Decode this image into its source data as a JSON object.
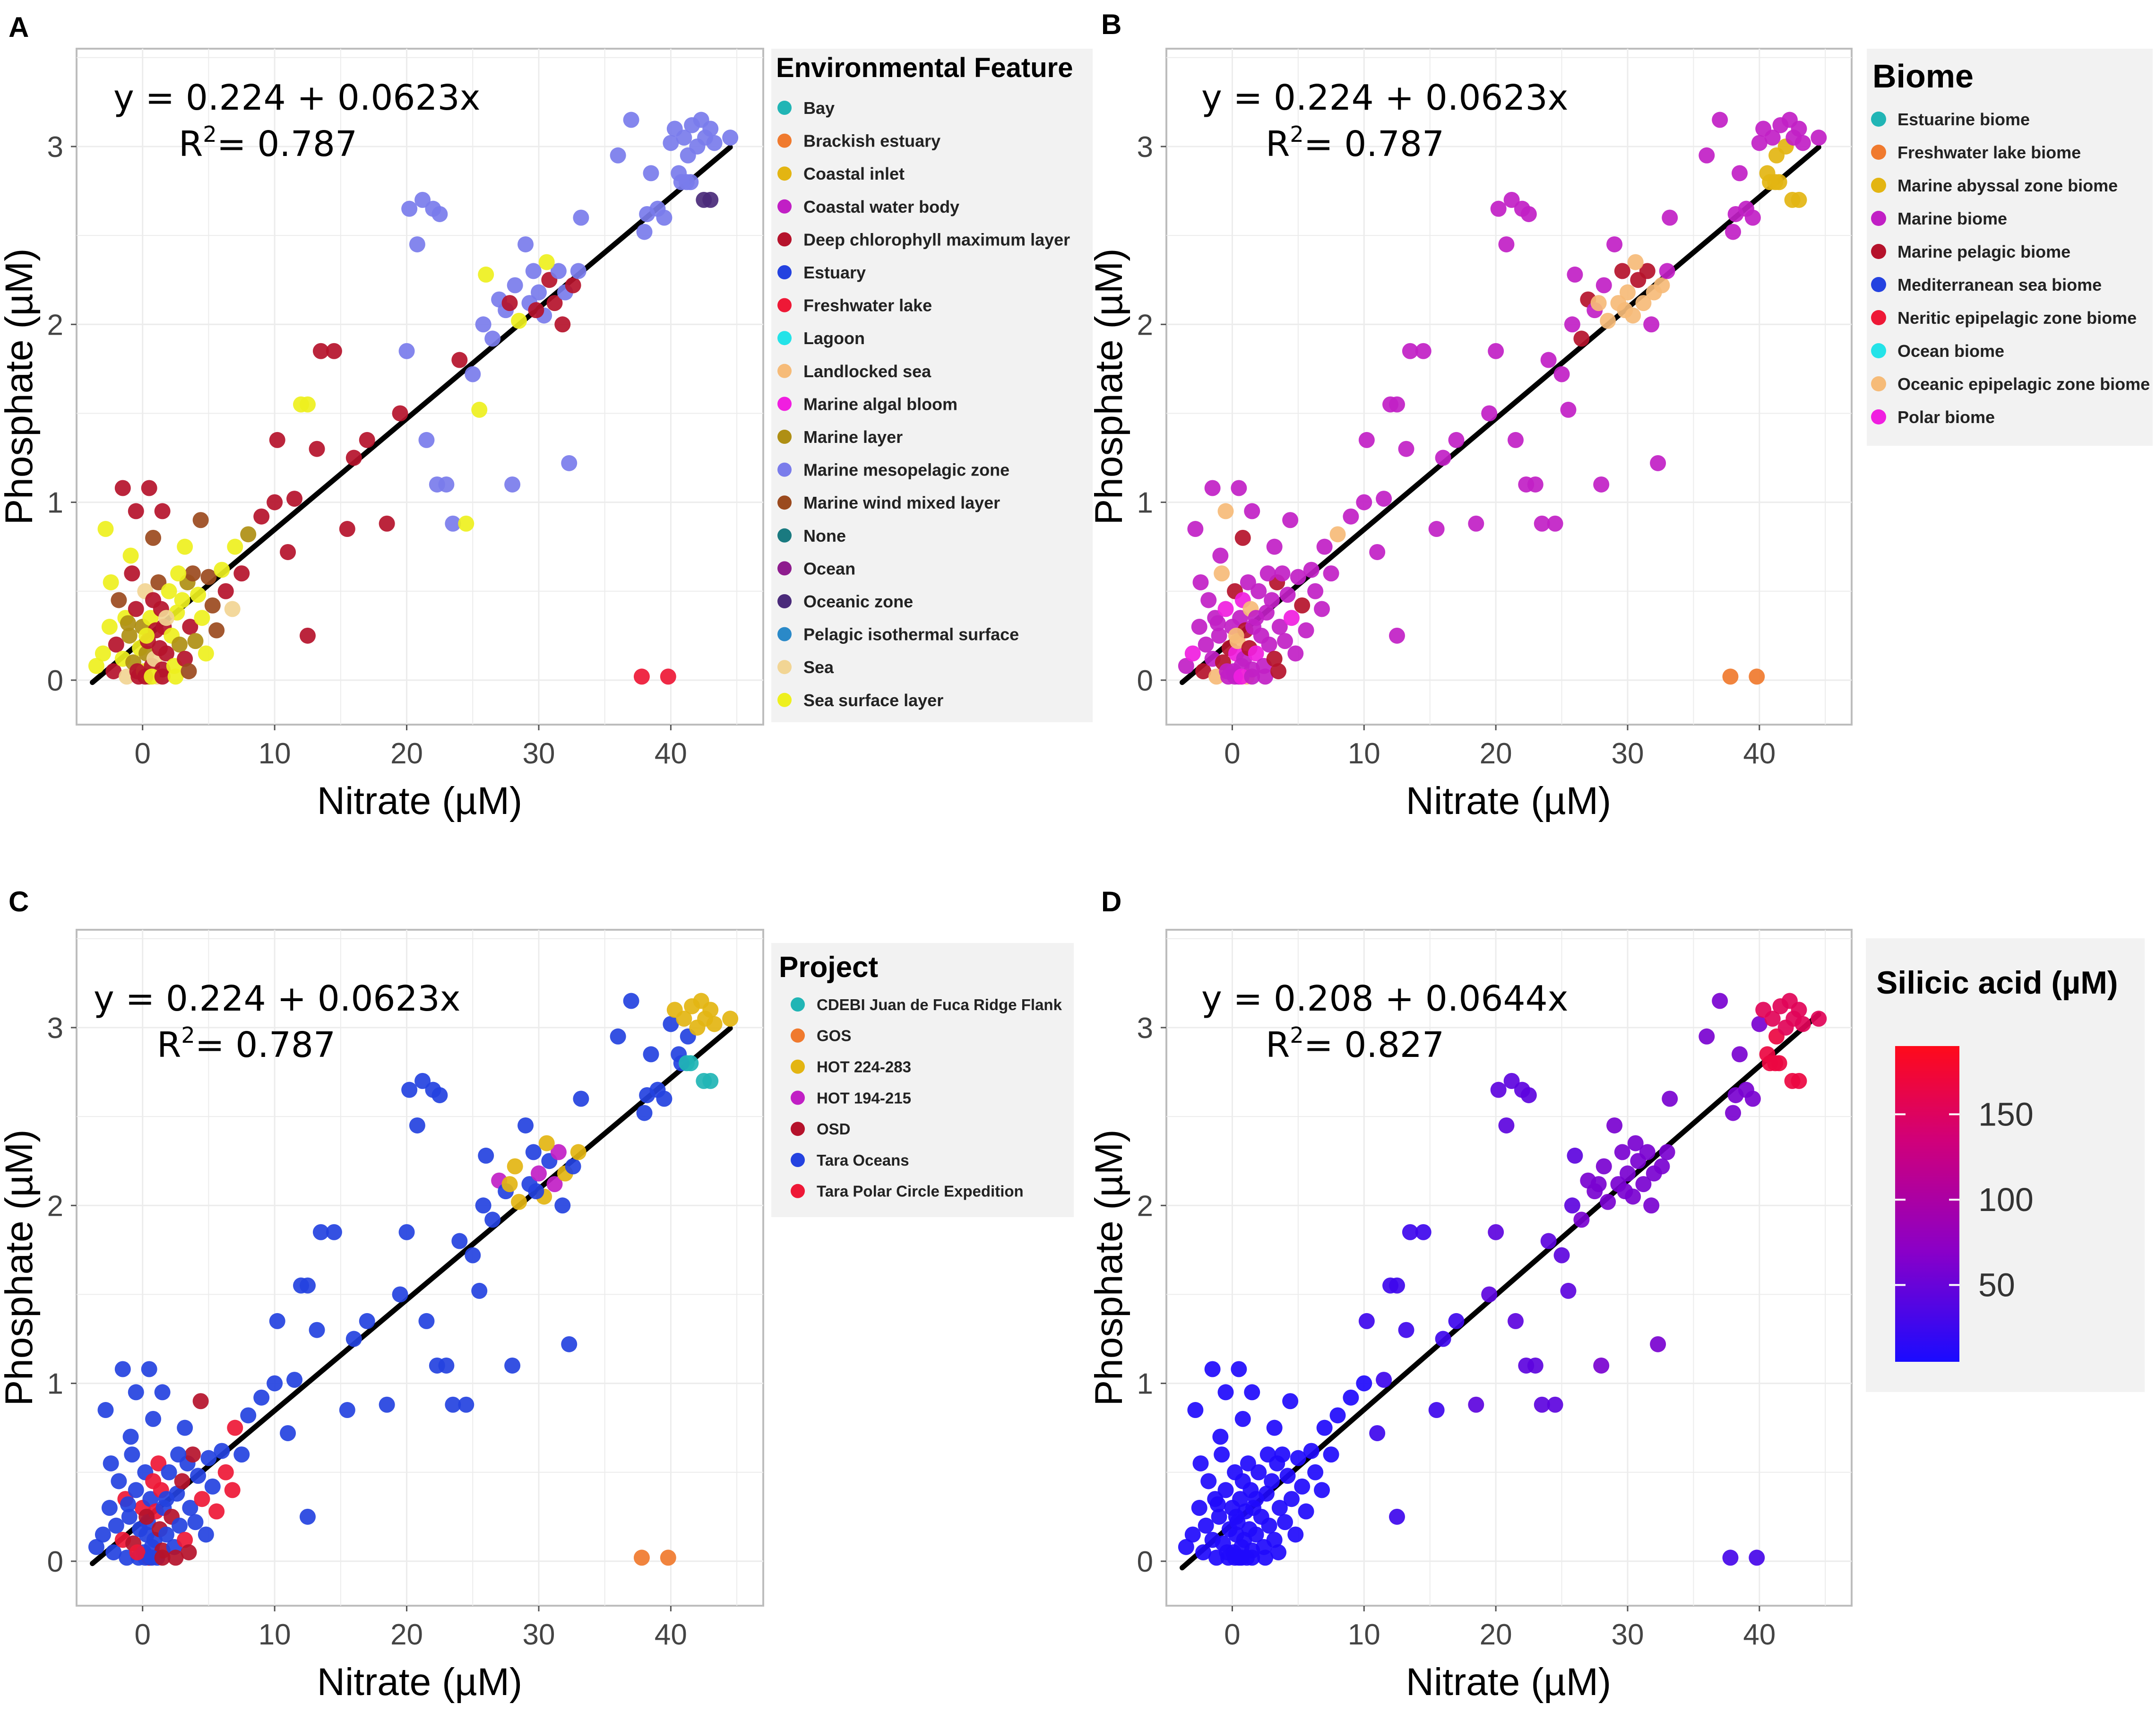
{
  "figure": {
    "x_tick_labels": [
      "0",
      "10",
      "20",
      "30",
      "40"
    ],
    "y_tick_labels": [
      "0",
      "1",
      "2",
      "3"
    ]
  },
  "chart_data": [
    {
      "panel": "A",
      "type": "scatter",
      "xlabel": "Nitrate (µM)",
      "ylabel": "Phosphate (µM)",
      "xlim": [
        -5,
        47
      ],
      "ylim": [
        -0.25,
        3.55
      ],
      "equation": "y = 0.224 + 0.0623x",
      "r2_label": "R",
      "r2_value": "= 0.787",
      "fit": {
        "intercept": 0.224,
        "slope": 0.0623,
        "x_range": [
          -3.8,
          44.5
        ]
      },
      "legend_title": "Environmental Feature",
      "legend": [
        {
          "label": "Bay",
          "color": "#21B5B5"
        },
        {
          "label": "Brackish estuary",
          "color": "#F07A2E"
        },
        {
          "label": "Coastal inlet",
          "color": "#E3B512"
        },
        {
          "label": "Coastal water body",
          "color": "#C11FC5"
        },
        {
          "label": "Deep chlorophyll maximum layer",
          "color": "#B5122B"
        },
        {
          "label": "Estuary",
          "color": "#2442E0"
        },
        {
          "label": "Freshwater lake",
          "color": "#EE1836"
        },
        {
          "label": "Lagoon",
          "color": "#24E3E8"
        },
        {
          "label": "Landlocked sea",
          "color": "#F6BB78"
        },
        {
          "label": "Marine algal bloom",
          "color": "#F01EE0"
        },
        {
          "label": "Marine layer",
          "color": "#AF8F14"
        },
        {
          "label": "Marine mesopelagic zone",
          "color": "#7A7CEB"
        },
        {
          "label": "Marine wind mixed layer",
          "color": "#9B4A1E"
        },
        {
          "label": "None",
          "color": "#1A7A80"
        },
        {
          "label": "Ocean",
          "color": "#8E1C8E"
        },
        {
          "label": "Oceanic zone",
          "color": "#4A2A7A"
        },
        {
          "label": "Pelagic isothermal surface",
          "color": "#2A89C8"
        },
        {
          "label": "Sea",
          "color": "#F2D594"
        },
        {
          "label": "Sea surface layer",
          "color": "#EEF01E"
        }
      ],
      "color_rule": "feature"
    },
    {
      "panel": "B",
      "type": "scatter",
      "xlabel": "Nitrate (µM)",
      "ylabel": "Phosphate (µM)",
      "xlim": [
        -5,
        47
      ],
      "ylim": [
        -0.25,
        3.55
      ],
      "equation": "y = 0.224 + 0.0623x",
      "r2_label": "R",
      "r2_value": "= 0.787",
      "fit": {
        "intercept": 0.224,
        "slope": 0.0623,
        "x_range": [
          -3.8,
          44.5
        ]
      },
      "legend_title": "Biome",
      "legend": [
        {
          "label": "Estuarine biome",
          "color": "#21B5B5"
        },
        {
          "label": "Freshwater lake biome",
          "color": "#F07A2E"
        },
        {
          "label": "Marine abyssal zone biome",
          "color": "#E3B512"
        },
        {
          "label": "Marine biome",
          "color": "#C11FC5"
        },
        {
          "label": "Marine pelagic biome",
          "color": "#B5122B"
        },
        {
          "label": "Mediterranean sea biome",
          "color": "#2442E0"
        },
        {
          "label": "Neritic epipelagic zone biome",
          "color": "#EE1836"
        },
        {
          "label": "Ocean biome",
          "color": "#24E3E8"
        },
        {
          "label": "Oceanic epipelagic zone biome",
          "color": "#F6BB78"
        },
        {
          "label": "Polar biome",
          "color": "#F01EE0"
        }
      ],
      "color_rule": "biome"
    },
    {
      "panel": "C",
      "type": "scatter",
      "xlabel": "Nitrate (µM)",
      "ylabel": "Phosphate (µM)",
      "xlim": [
        -5,
        47
      ],
      "ylim": [
        -0.25,
        3.55
      ],
      "equation": "y = 0.224 + 0.0623x",
      "r2_label": "R",
      "r2_value": "= 0.787",
      "fit": {
        "intercept": 0.224,
        "slope": 0.0623,
        "x_range": [
          -3.8,
          44.5
        ]
      },
      "legend_title": "Project",
      "legend": [
        {
          "label": "CDEBI Juan de Fuca Ridge Flank",
          "color": "#21B5B5"
        },
        {
          "label": "GOS",
          "color": "#F07A2E"
        },
        {
          "label": "HOT 224-283",
          "color": "#E3B512"
        },
        {
          "label": "HOT 194-215",
          "color": "#C11FC5"
        },
        {
          "label": "OSD",
          "color": "#B5122B"
        },
        {
          "label": "Tara Oceans",
          "color": "#2442E0"
        },
        {
          "label": "Tara Polar Circle Expedition",
          "color": "#EE1836"
        }
      ],
      "color_rule": "project"
    },
    {
      "panel": "D",
      "type": "scatter",
      "xlabel": "Nitrate (µM)",
      "ylabel": "Phosphate (µM)",
      "xlim": [
        -5,
        47
      ],
      "ylim": [
        -0.25,
        3.55
      ],
      "equation": "y = 0.208 + 0.0644x",
      "r2_label": "R",
      "r2_value": "= 0.827",
      "fit": {
        "intercept": 0.208,
        "slope": 0.0644,
        "x_range": [
          -3.8,
          44.5
        ]
      },
      "colorbar": {
        "title": "Silicic acid (µM)",
        "range": [
          5,
          190
        ],
        "ticks": [
          50,
          100,
          150
        ],
        "tick_labels": [
          "50",
          "100",
          "150"
        ],
        "colors": [
          "#1A0BFF",
          "#8A00C8",
          "#D0007A",
          "#FF0A1A"
        ]
      },
      "color_rule": "silicic"
    }
  ],
  "points": [
    [
      -3.5,
      0.08
    ],
    [
      -3,
      0.15
    ],
    [
      -2.8,
      0.85
    ],
    [
      -2.5,
      0.3
    ],
    [
      -2.2,
      0.05
    ],
    [
      -2,
      0.2
    ],
    [
      -1.8,
      0.45
    ],
    [
      -1.5,
      0.12
    ],
    [
      -1.3,
      0.35
    ],
    [
      -1.2,
      0.02
    ],
    [
      -1,
      0.25
    ],
    [
      -0.8,
      0.6
    ],
    [
      -0.7,
      0.1
    ],
    [
      -0.5,
      0.4
    ],
    [
      -0.3,
      0.02
    ],
    [
      -0.2,
      0.18
    ],
    [
      0,
      0.3
    ],
    [
      0.1,
      0.05
    ],
    [
      0.2,
      0.5
    ],
    [
      0.3,
      0.15
    ],
    [
      0.4,
      0.22
    ],
    [
      0.5,
      0.02
    ],
    [
      0.6,
      0.35
    ],
    [
      0.7,
      0.08
    ],
    [
      0.8,
      0.45
    ],
    [
      0.9,
      0.12
    ],
    [
      1,
      0.28
    ],
    [
      1.1,
      0.02
    ],
    [
      1.2,
      0.55
    ],
    [
      1.3,
      0.18
    ],
    [
      1.4,
      0.4
    ],
    [
      1.5,
      0.06
    ],
    [
      1.6,
      0.3
    ],
    [
      1.8,
      0.15
    ],
    [
      2,
      0.5
    ],
    [
      2.2,
      0.25
    ],
    [
      2.4,
      0.08
    ],
    [
      2.6,
      0.38
    ],
    [
      2.8,
      0.2
    ],
    [
      3,
      0.45
    ],
    [
      3.2,
      0.12
    ],
    [
      3.4,
      0.55
    ],
    [
      3.6,
      0.3
    ],
    [
      3.8,
      0.6
    ],
    [
      4,
      0.22
    ],
    [
      4.2,
      0.48
    ],
    [
      4.5,
      0.35
    ],
    [
      4.8,
      0.15
    ],
    [
      5,
      0.58
    ],
    [
      5.3,
      0.42
    ],
    [
      5.6,
      0.28
    ],
    [
      6,
      0.62
    ],
    [
      6.3,
      0.5
    ],
    [
      6.8,
      0.4
    ],
    [
      7,
      0.75
    ],
    [
      7.5,
      0.6
    ],
    [
      8,
      0.82
    ],
    [
      -1.5,
      1.08
    ],
    [
      -0.5,
      0.95
    ],
    [
      0.5,
      1.08
    ],
    [
      0.2,
      0.02
    ],
    [
      -0.4,
      0.05
    ],
    [
      0.7,
      0.02
    ],
    [
      1.5,
      0.02
    ],
    [
      -1.1,
      0.32
    ],
    [
      2.5,
      0.02
    ],
    [
      3.5,
      0.05
    ],
    [
      0.3,
      0.25
    ],
    [
      1.8,
      0.35
    ],
    [
      2.7,
      0.6
    ],
    [
      -2.4,
      0.55
    ],
    [
      -0.9,
      0.7
    ],
    [
      0.8,
      0.8
    ],
    [
      4.4,
      0.9
    ],
    [
      1.5,
      0.95
    ],
    [
      3.2,
      0.75
    ],
    [
      9,
      0.92
    ],
    [
      10,
      1.0
    ],
    [
      10.2,
      1.35
    ],
    [
      11.5,
      1.02
    ],
    [
      12,
      1.55
    ],
    [
      12.5,
      1.55
    ],
    [
      11,
      0.72
    ],
    [
      12.5,
      0.25
    ],
    [
      13.2,
      1.3
    ],
    [
      13.5,
      1.85
    ],
    [
      14.5,
      1.85
    ],
    [
      15.5,
      0.85
    ],
    [
      16,
      1.25
    ],
    [
      17,
      1.35
    ],
    [
      18.5,
      0.88
    ],
    [
      19.5,
      1.5
    ],
    [
      20,
      1.85
    ],
    [
      20.2,
      2.65
    ],
    [
      20.8,
      2.45
    ],
    [
      21.2,
      2.7
    ],
    [
      21.5,
      1.35
    ],
    [
      22,
      2.65
    ],
    [
      22.5,
      2.62
    ],
    [
      22.3,
      1.1
    ],
    [
      23,
      1.1
    ],
    [
      23.5,
      0.88
    ],
    [
      24,
      1.8
    ],
    [
      24.5,
      0.88
    ],
    [
      25,
      1.72
    ],
    [
      25.5,
      1.52
    ],
    [
      25.8,
      2.0
    ],
    [
      26,
      2.28
    ],
    [
      26.5,
      1.92
    ],
    [
      27,
      2.14
    ],
    [
      27.5,
      2.08
    ],
    [
      28,
      1.1
    ],
    [
      28.2,
      2.22
    ],
    [
      28.5,
      2.02
    ],
    [
      29,
      2.45
    ],
    [
      29.3,
      2.12
    ],
    [
      29.6,
      2.3
    ],
    [
      30,
      2.18
    ],
    [
      30.4,
      2.05
    ],
    [
      30.8,
      2.25
    ],
    [
      31.2,
      2.12
    ],
    [
      31.5,
      2.3
    ],
    [
      32,
      2.18
    ],
    [
      32.3,
      1.22
    ],
    [
      32.6,
      2.22
    ],
    [
      33,
      2.3
    ],
    [
      33.2,
      2.6
    ],
    [
      29.8,
      2.08
    ],
    [
      30.6,
      2.35
    ],
    [
      31.8,
      2.0
    ],
    [
      27.8,
      2.12
    ],
    [
      36,
      2.95
    ],
    [
      37,
      3.15
    ],
    [
      38,
      2.52
    ],
    [
      38.2,
      2.62
    ],
    [
      38.5,
      2.85
    ],
    [
      39,
      2.65
    ],
    [
      39.5,
      2.6
    ],
    [
      40,
      3.02
    ],
    [
      40.3,
      3.1
    ],
    [
      40.6,
      2.85
    ],
    [
      41,
      3.05
    ],
    [
      41.3,
      2.95
    ],
    [
      41.6,
      3.12
    ],
    [
      42,
      3.0
    ],
    [
      42.3,
      3.15
    ],
    [
      42.6,
      3.05
    ],
    [
      43,
      3.1
    ],
    [
      43.3,
      3.02
    ],
    [
      44.5,
      3.05
    ],
    [
      41.5,
      2.8
    ],
    [
      42.5,
      2.7
    ],
    [
      43,
      2.7
    ],
    [
      40.8,
      2.8
    ],
    [
      41.2,
      2.8
    ],
    [
      37.8,
      0.02
    ],
    [
      39.8,
      0.02
    ]
  ]
}
